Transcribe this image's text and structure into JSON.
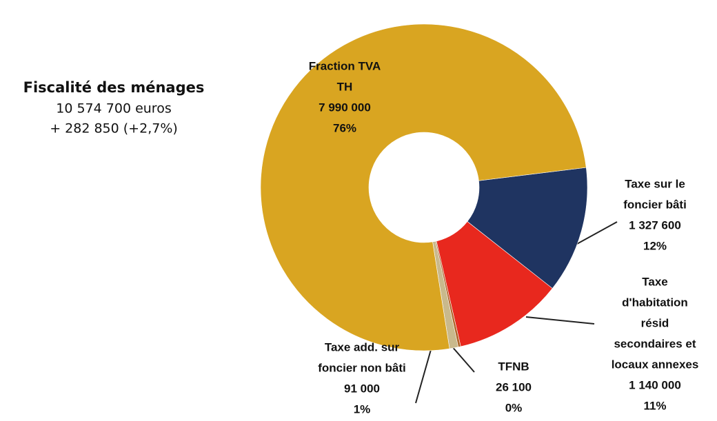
{
  "chart_data": {
    "type": "donut",
    "title": "Fiscalité des ménages",
    "subtitle_lines": [
      "10 574 700 euros",
      "+ 282 850 (+2,7%)"
    ],
    "categories": [
      [
        "Taxe sur le",
        "foncier bâti"
      ],
      [
        "Taxe",
        "d'habitation",
        "résid",
        "secondaires et",
        "locaux annexes"
      ],
      [
        "TFNB"
      ],
      [
        "Taxe add. sur",
        "foncier non bâti"
      ],
      [
        "Fraction TVA",
        "TH"
      ]
    ],
    "values": [
      1327600,
      1140000,
      26100,
      91000,
      7990000
    ],
    "value_labels": [
      "1 327 600",
      "1 140 000",
      "26 100",
      "91 000",
      "7 990 000"
    ],
    "percents": [
      12,
      11,
      0,
      1,
      76
    ],
    "percent_labels": [
      "12%",
      "11%",
      "0%",
      "1%",
      "76%"
    ],
    "colors": [
      "#1f3461",
      "#e8281e",
      "#b0652a",
      "#c9b98c",
      "#d9a521"
    ]
  }
}
